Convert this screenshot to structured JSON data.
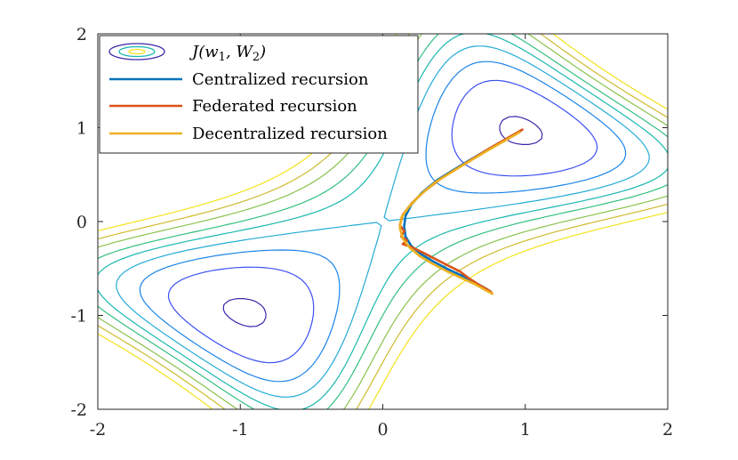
{
  "chart_data": {
    "type": "line",
    "title": "",
    "xlabel": "",
    "ylabel": "",
    "xlim": [
      -2,
      2
    ],
    "ylim": [
      -2,
      2
    ],
    "xticks": [
      "-2",
      "-1",
      "0",
      "1",
      "2"
    ],
    "yticks": [
      "2",
      "1",
      "0",
      "-1",
      "-2"
    ],
    "legend_position": "top-left",
    "legend": [
      {
        "label": "J(w1, W2)",
        "kind": "contour"
      },
      {
        "label": "Centralized recursion",
        "color": "#0072BD"
      },
      {
        "label": "Federated recursion",
        "color": "#D95319"
      },
      {
        "label": "Decentralized recursion",
        "color": "#EDB120"
      }
    ],
    "contour_levels": [
      {
        "level": 0.12,
        "color": "#3E26A8"
      },
      {
        "level": 0.35,
        "color": "#3C51F3"
      },
      {
        "level": 0.55,
        "color": "#1A84E8"
      },
      {
        "level": 0.75,
        "color": "#25ABD6"
      },
      {
        "level": 0.95,
        "color": "#1AB8B1"
      },
      {
        "level": 1.15,
        "color": "#33BF80"
      },
      {
        "level": 1.4,
        "color": "#8AC24D"
      },
      {
        "level": 1.65,
        "color": "#CFBA2E"
      },
      {
        "level": 1.95,
        "color": "#F3E21A"
      }
    ],
    "series": [
      {
        "name": "Centralized recursion",
        "color": "#0072BD",
        "x": [
          0.97,
          0.75,
          0.55,
          0.38,
          0.27,
          0.2,
          0.16,
          0.15,
          0.16,
          0.2,
          0.27,
          0.36,
          0.46,
          0.56,
          0.66,
          0.73,
          0.76
        ],
        "y": [
          0.97,
          0.78,
          0.6,
          0.44,
          0.3,
          0.18,
          0.06,
          -0.05,
          -0.16,
          -0.26,
          -0.35,
          -0.43,
          -0.51,
          -0.58,
          -0.66,
          -0.72,
          -0.75
        ]
      },
      {
        "name": "Federated recursion",
        "color": "#D95319",
        "x": [
          0.98,
          0.76,
          0.57,
          0.41,
          0.29,
          0.2,
          0.14,
          0.12,
          0.15,
          0.13,
          0.17,
          0.14,
          0.2,
          0.28,
          0.37,
          0.46,
          0.54,
          0.6,
          0.64,
          0.68,
          0.73,
          0.76
        ],
        "y": [
          0.98,
          0.79,
          0.61,
          0.46,
          0.32,
          0.19,
          0.07,
          -0.04,
          -0.1,
          -0.16,
          -0.2,
          -0.24,
          -0.27,
          -0.33,
          -0.4,
          -0.47,
          -0.53,
          -0.6,
          -0.64,
          -0.68,
          -0.72,
          -0.75
        ]
      },
      {
        "name": "Decentralized recursion",
        "color": "#EDB120",
        "x": [
          0.96,
          0.74,
          0.54,
          0.37,
          0.26,
          0.18,
          0.13,
          0.12,
          0.14,
          0.19,
          0.26,
          0.35,
          0.45,
          0.55,
          0.65,
          0.72,
          0.77
        ],
        "y": [
          0.95,
          0.76,
          0.58,
          0.42,
          0.28,
          0.15,
          0.04,
          -0.07,
          -0.18,
          -0.28,
          -0.37,
          -0.45,
          -0.53,
          -0.6,
          -0.67,
          -0.73,
          -0.77
        ]
      }
    ]
  }
}
